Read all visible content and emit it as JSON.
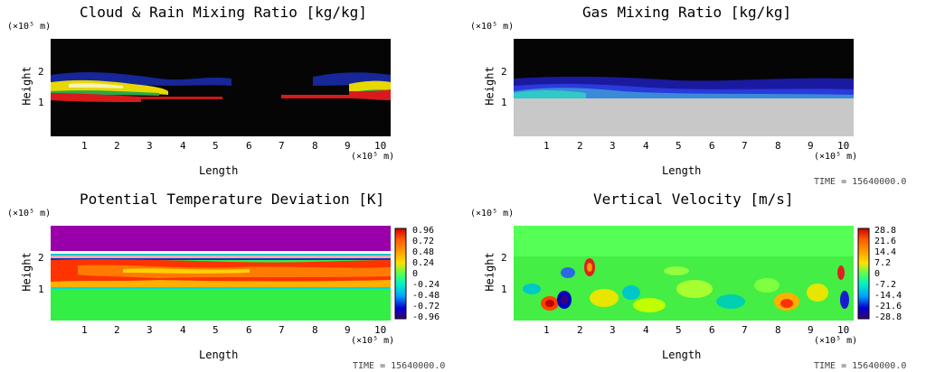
{
  "time_label": "TIME = 15640000.0",
  "exp_unit": "(×10⁵ m)",
  "chart_data": [
    {
      "type": "heatmap",
      "title": "Cloud & Rain Mixing Ratio [kg/kg]",
      "xlabel": "Length",
      "ylabel": "Height",
      "xunit": "(×10⁵ m)",
      "yunit": "(×10⁵ m)",
      "xticks": [
        "1",
        "2",
        "3",
        "4",
        "5",
        "6",
        "7",
        "8",
        "9",
        "10"
      ],
      "yticks": [
        "1",
        "2"
      ],
      "xlim": [
        0,
        10.3
      ],
      "ylim": [
        0,
        3
      ],
      "colorbar": null,
      "time": ""
    },
    {
      "type": "heatmap",
      "title": "Gas Mixing Ratio [kg/kg]",
      "xlabel": "Length",
      "ylabel": "Height",
      "xunit": "(×10⁵ m)",
      "yunit": "(×10⁵ m)",
      "xticks": [
        "1",
        "2",
        "3",
        "4",
        "5",
        "6",
        "7",
        "8",
        "9",
        "10"
      ],
      "yticks": [
        "1",
        "2"
      ],
      "xlim": [
        0,
        10.3
      ],
      "ylim": [
        0,
        3
      ],
      "colorbar": null,
      "time": "TIME = 15640000.0"
    },
    {
      "type": "heatmap",
      "title": "Potential Temperature Deviation [K]",
      "xlabel": "Length",
      "ylabel": "Height",
      "xunit": "(×10⁵ m)",
      "yunit": "(×10⁵ m)",
      "xticks": [
        "1",
        "2",
        "3",
        "4",
        "5",
        "6",
        "7",
        "8",
        "9",
        "10"
      ],
      "yticks": [
        "1",
        "2"
      ],
      "xlim": [
        0,
        10.3
      ],
      "ylim": [
        0,
        3
      ],
      "colorbar": [
        "0.96",
        "0.72",
        "0.48",
        "0.24",
        "0",
        "-0.24",
        "-0.48",
        "-0.72",
        "-0.96"
      ],
      "time": "TIME = 15640000.0"
    },
    {
      "type": "heatmap",
      "title": "Vertical Velocity [m/s]",
      "xlabel": "Length",
      "ylabel": "Height",
      "xunit": "(×10⁵ m)",
      "yunit": "(×10⁵ m)",
      "xticks": [
        "1",
        "2",
        "3",
        "4",
        "5",
        "6",
        "7",
        "8",
        "9",
        "10"
      ],
      "yticks": [
        "1",
        "2"
      ],
      "xlim": [
        0,
        10.3
      ],
      "ylim": [
        0,
        3
      ],
      "colorbar": [
        "28.8",
        "21.6",
        "14.4",
        "7.2",
        "0",
        "-7.2",
        "-14.4",
        "-21.6",
        "-28.8"
      ],
      "time": "TIME = 15640000.0"
    }
  ],
  "colors": {
    "background_dark": "#050505",
    "gas_lower": "#c8c8c8",
    "theta_top": "#9900aa",
    "theta_mid": "#ff3300",
    "theta_base": "#33ee44",
    "w_base": "#44ee44"
  },
  "colorbar_colors": [
    "#d20000",
    "#ff5a00",
    "#ff9a00",
    "#ffe000",
    "#d4ff00",
    "#55ff55",
    "#00f0c8",
    "#00a0ff",
    "#0000d0",
    "#3a0078"
  ]
}
